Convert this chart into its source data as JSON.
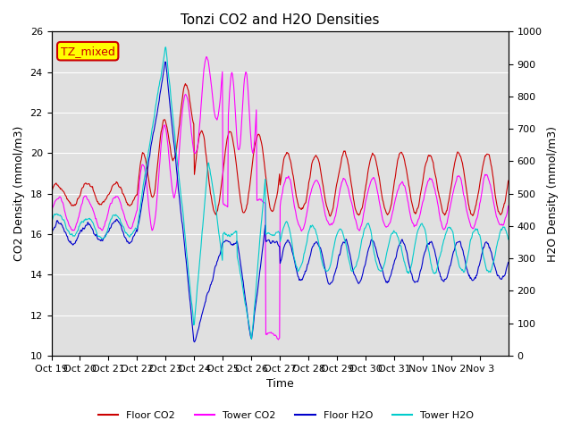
{
  "title": "Tonzi CO2 and H2O Densities",
  "xlabel": "Time",
  "ylabel_left": "CO2 Density (mmol/m3)",
  "ylabel_right": "H2O Density (mmol/m3)",
  "ylim_left": [
    10,
    26
  ],
  "ylim_right": [
    0,
    1000
  ],
  "yticks_left": [
    10,
    12,
    14,
    16,
    18,
    20,
    22,
    24,
    26
  ],
  "yticks_right": [
    0,
    100,
    200,
    300,
    400,
    500,
    600,
    700,
    800,
    900,
    1000
  ],
  "xtick_labels": [
    "Oct 19",
    "Oct 20",
    "Oct 21",
    "Oct 22",
    "Oct 23",
    "Oct 24",
    "Oct 25",
    "Oct 26",
    "Oct 27",
    "Oct 28",
    "Oct 29",
    "Oct 30",
    "Oct 31",
    "Nov 1",
    "Nov 2",
    "Nov 3"
  ],
  "annotation_text": "TZ_mixed",
  "annotation_bg": "#ffff00",
  "annotation_fc": "#cc0000",
  "line_colors": {
    "floor_co2": "#cc0000",
    "tower_co2": "#ff00ff",
    "floor_h2o": "#0000cc",
    "tower_h2o": "#00cccc"
  },
  "legend_labels": [
    "Floor CO2",
    "Tower CO2",
    "Floor H2O",
    "Tower H2O"
  ],
  "background_color": "#e0e0e0"
}
